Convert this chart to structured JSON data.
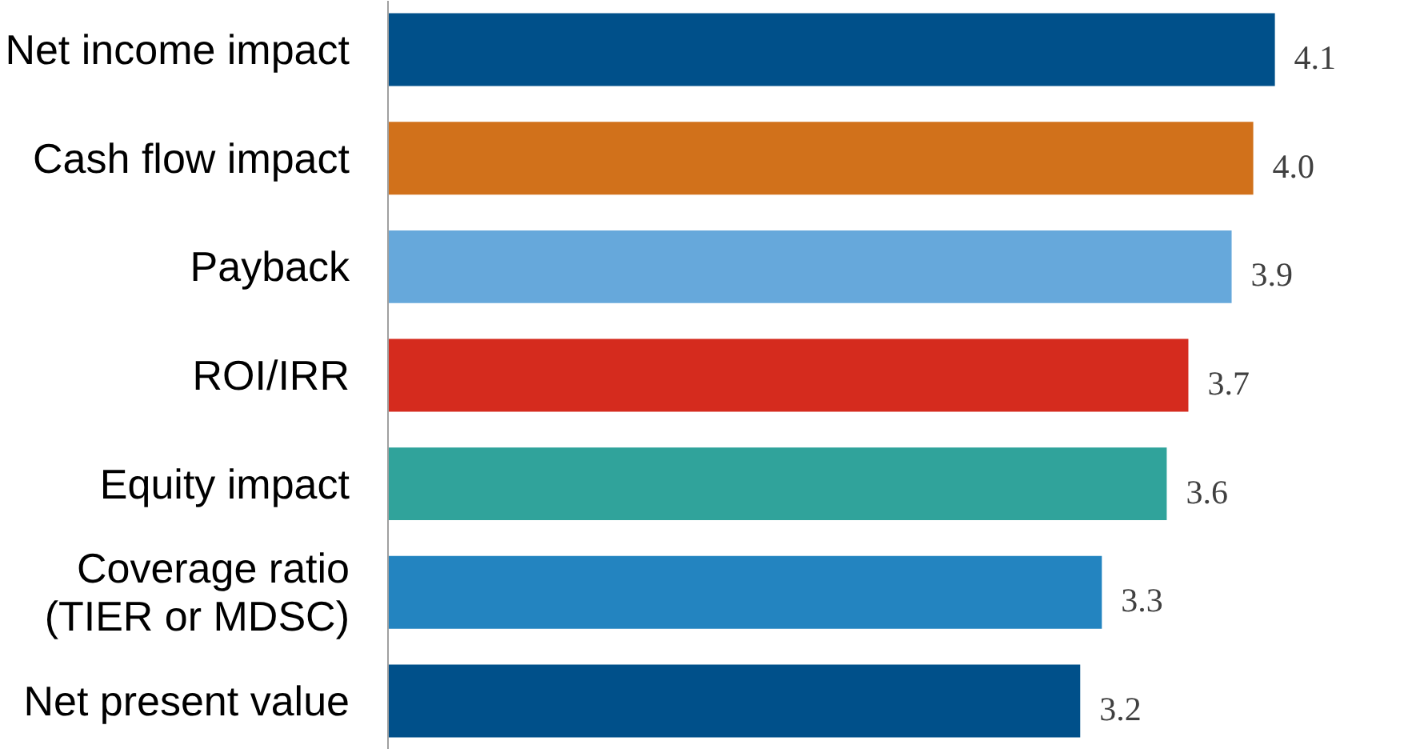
{
  "chart_data": {
    "type": "bar",
    "orientation": "horizontal",
    "categories": [
      "Net income impact",
      "Cash flow impact",
      "Payback",
      "ROI/IRR",
      "Equity impact",
      "Coverage ratio\n(TIER or MDSC)",
      "Net present value"
    ],
    "values": [
      4.1,
      4.0,
      3.9,
      3.7,
      3.6,
      3.3,
      3.2
    ],
    "value_labels": [
      "4.1",
      "4.0",
      "3.9",
      "3.7",
      "3.6",
      "3.3",
      "3.2"
    ],
    "colors": [
      "#00508a",
      "#d1711b",
      "#66a8db",
      "#d52b1e",
      "#30a39b",
      "#2384c0",
      "#00508a"
    ],
    "tick_labels": "y"
  }
}
